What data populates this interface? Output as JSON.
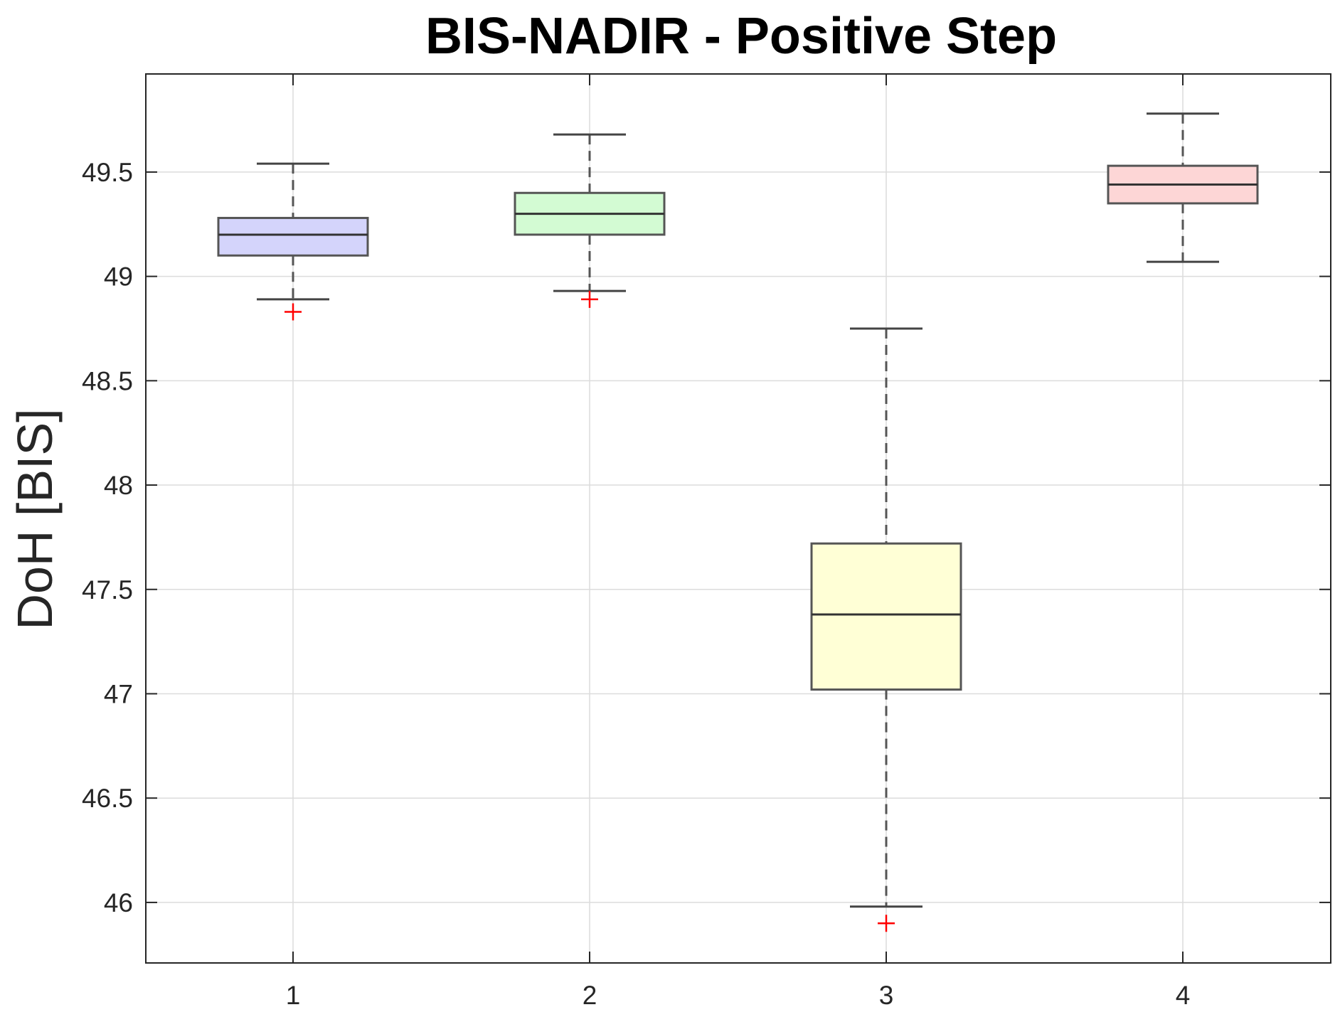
{
  "chart_data": {
    "type": "box",
    "title": "BIS-NADIR - Positive Step",
    "ylabel": "DoH [BIS]",
    "xlabel": "",
    "categories": [
      "1",
      "2",
      "3",
      "4"
    ],
    "ylim": [
      45.71,
      49.97
    ],
    "yticks": [
      46,
      46.5,
      47,
      47.5,
      48,
      48.5,
      49,
      49.5
    ],
    "ytick_labels": [
      "46",
      "46.5",
      "47",
      "47.5",
      "48",
      "48.5",
      "49",
      "49.5"
    ],
    "grid": true,
    "boxes": [
      {
        "category": "1",
        "whisker_low": 48.89,
        "q1": 49.1,
        "median": 49.2,
        "q3": 49.28,
        "whisker_high": 49.54,
        "outliers": [
          48.83
        ],
        "fill": "#d4d4fb"
      },
      {
        "category": "2",
        "whisker_low": 48.93,
        "q1": 49.2,
        "median": 49.3,
        "q3": 49.4,
        "whisker_high": 49.68,
        "outliers": [
          48.89
        ],
        "fill": "#d3fbd3"
      },
      {
        "category": "3",
        "whisker_low": 45.98,
        "q1": 47.02,
        "median": 47.38,
        "q3": 47.72,
        "whisker_high": 48.75,
        "outliers": [
          45.9
        ],
        "fill": "#ffffd6"
      },
      {
        "category": "4",
        "whisker_low": 49.07,
        "q1": 49.35,
        "median": 49.44,
        "q3": 49.53,
        "whisker_high": 49.78,
        "outliers": [],
        "fill": "#fdd6d6"
      }
    ],
    "colors": {
      "outlier": "#ff0000"
    }
  }
}
